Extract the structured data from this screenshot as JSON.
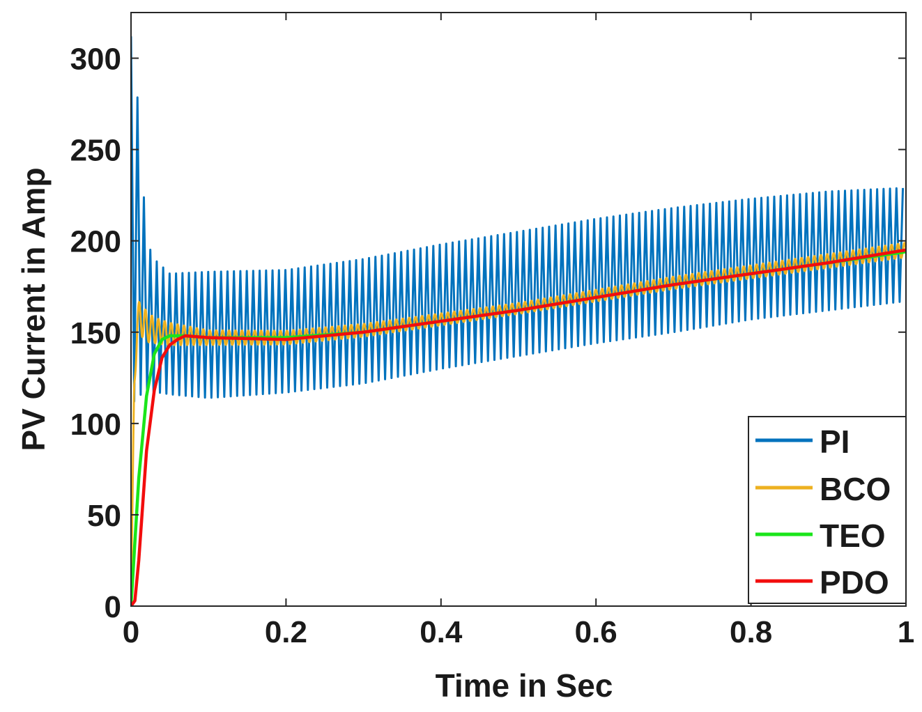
{
  "chart_data": {
    "type": "line",
    "title": "",
    "xlabel": "Time in Sec",
    "ylabel": "PV Current in Amp",
    "xlim": [
      0,
      1
    ],
    "ylim": [
      0,
      325
    ],
    "xticks": [
      0,
      0.2,
      0.4,
      0.6,
      0.8,
      1
    ],
    "xtick_labels": [
      "0",
      "0.2",
      "0.4",
      "0.6",
      "0.8",
      "1"
    ],
    "yticks": [
      0,
      50,
      100,
      150,
      200,
      250,
      300
    ],
    "ytick_labels": [
      "0",
      "50",
      "100",
      "150",
      "200",
      "250",
      "300"
    ],
    "grid": false,
    "legend_position": "bottom-right",
    "series": [
      {
        "name": "PI",
        "color": "#0072BD",
        "oscillating": true,
        "period": 0.0083,
        "upper_envelope": [
          [
            0,
            312
          ],
          [
            0.004,
            300
          ],
          [
            0.01,
            270
          ],
          [
            0.02,
            200
          ],
          [
            0.03,
            190
          ],
          [
            0.05,
            182
          ],
          [
            0.1,
            183
          ],
          [
            0.2,
            184
          ],
          [
            0.3,
            190
          ],
          [
            0.4,
            198
          ],
          [
            0.5,
            205
          ],
          [
            0.6,
            212
          ],
          [
            0.7,
            218
          ],
          [
            0.8,
            223
          ],
          [
            0.9,
            227
          ],
          [
            1.0,
            229
          ]
        ],
        "lower_envelope": [
          [
            0,
            110
          ],
          [
            0.01,
            115
          ],
          [
            0.02,
            118
          ],
          [
            0.05,
            116
          ],
          [
            0.1,
            114
          ],
          [
            0.2,
            117
          ],
          [
            0.3,
            122
          ],
          [
            0.4,
            130
          ],
          [
            0.5,
            137
          ],
          [
            0.6,
            144
          ],
          [
            0.7,
            150
          ],
          [
            0.8,
            157
          ],
          [
            0.9,
            162
          ],
          [
            1.0,
            167
          ]
        ]
      },
      {
        "name": "BCO",
        "color": "#EDB120",
        "oscillating": true,
        "period": 0.0083,
        "mean": [
          [
            0,
            0
          ],
          [
            0.004,
            120
          ],
          [
            0.008,
            155
          ],
          [
            0.012,
            158
          ],
          [
            0.02,
            153
          ],
          [
            0.03,
            151
          ],
          [
            0.05,
            149
          ],
          [
            0.1,
            147
          ],
          [
            0.2,
            147
          ],
          [
            0.3,
            151
          ],
          [
            0.4,
            157
          ],
          [
            0.5,
            163
          ],
          [
            0.6,
            170
          ],
          [
            0.7,
            177
          ],
          [
            0.8,
            183
          ],
          [
            0.9,
            189
          ],
          [
            1.0,
            195
          ]
        ],
        "amplitude": [
          [
            0,
            0
          ],
          [
            0.008,
            10
          ],
          [
            0.03,
            7
          ],
          [
            0.1,
            4
          ],
          [
            0.5,
            3
          ],
          [
            1.0,
            4
          ]
        ]
      },
      {
        "name": "TEO",
        "color": "#1AE51A",
        "oscillating": false,
        "points": [
          [
            0,
            0
          ],
          [
            0.01,
            70
          ],
          [
            0.02,
            115
          ],
          [
            0.03,
            138
          ],
          [
            0.04,
            146
          ],
          [
            0.05,
            148
          ],
          [
            0.07,
            148
          ],
          [
            0.1,
            147
          ],
          [
            0.2,
            147
          ],
          [
            0.3,
            150
          ],
          [
            0.4,
            156
          ],
          [
            0.5,
            162
          ],
          [
            0.6,
            169
          ],
          [
            0.7,
            176
          ],
          [
            0.8,
            182
          ],
          [
            0.9,
            188
          ],
          [
            1.0,
            194
          ]
        ]
      },
      {
        "name": "PDO",
        "color": "#F20D0D",
        "oscillating": false,
        "points": [
          [
            0,
            0
          ],
          [
            0.005,
            3
          ],
          [
            0.01,
            25
          ],
          [
            0.02,
            85
          ],
          [
            0.03,
            118
          ],
          [
            0.04,
            136
          ],
          [
            0.05,
            143
          ],
          [
            0.06,
            146
          ],
          [
            0.07,
            148
          ],
          [
            0.1,
            147
          ],
          [
            0.2,
            146
          ],
          [
            0.3,
            150
          ],
          [
            0.4,
            156
          ],
          [
            0.5,
            162
          ],
          [
            0.6,
            169
          ],
          [
            0.7,
            176
          ],
          [
            0.8,
            182
          ],
          [
            0.9,
            188
          ],
          [
            1.0,
            195
          ]
        ]
      }
    ]
  }
}
